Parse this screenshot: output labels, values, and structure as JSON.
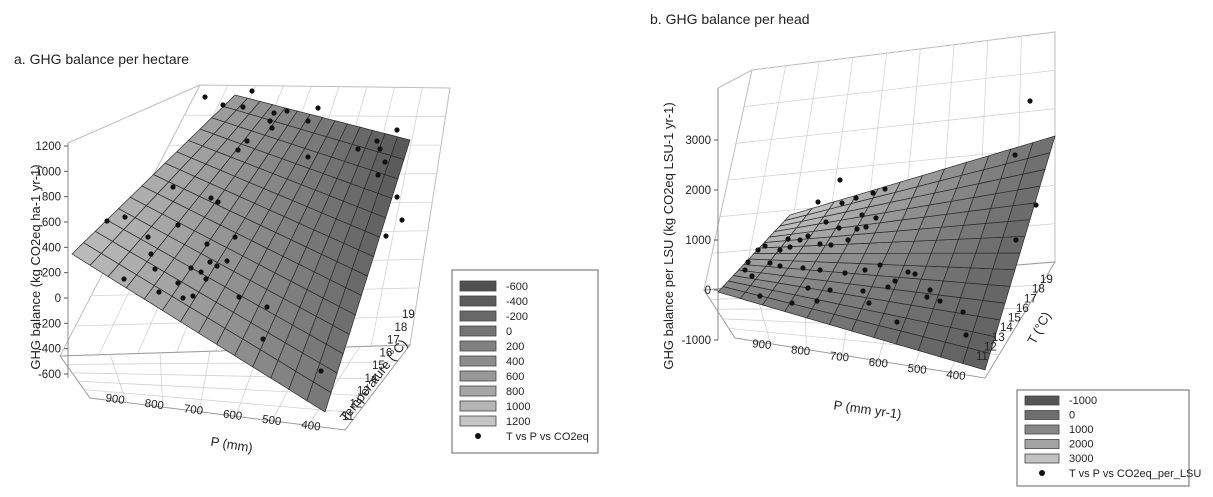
{
  "chart_data": [
    {
      "type": "surface3d",
      "title": "a. GHG balance per hectare",
      "zlabel": "GHG balance (kg CO2eq ha-1 yr-1)",
      "xlabel": "P (mm)",
      "ylabel": "Temperature (°C)",
      "z_ticks": [
        "1200",
        "1000",
        "800",
        "600",
        "400",
        "200",
        "0",
        "-200",
        "-400",
        "-600"
      ],
      "x_ticks": [
        "900",
        "800",
        "700",
        "600",
        "500",
        "400"
      ],
      "y_ticks": [
        "11",
        "12",
        "13",
        "14",
        "15",
        "16",
        "17",
        "18",
        "19"
      ],
      "legend": {
        "entries": [
          {
            "label": "-600",
            "color": "#505050"
          },
          {
            "label": "-400",
            "color": "#5c5c5c"
          },
          {
            "label": "-200",
            "color": "#686868"
          },
          {
            "label": "0",
            "color": "#747474"
          },
          {
            "label": "200",
            "color": "#808080"
          },
          {
            "label": "400",
            "color": "#8c8c8c"
          },
          {
            "label": "600",
            "color": "#989898"
          },
          {
            "label": "800",
            "color": "#a6a6a6"
          },
          {
            "label": "1000",
            "color": "#b4b4b4"
          },
          {
            "label": "1200",
            "color": "#c4c4c4"
          }
        ],
        "points_label": "T vs P vs CO2eq"
      }
    },
    {
      "type": "surface3d",
      "title": "b. GHG balance per head",
      "zlabel": "GHG balance per LSU (kg CO2eq LSU-1 yr-1)",
      "xlabel": "P (mm yr-1)",
      "ylabel": "T (°C)",
      "z_ticks": [
        "3000",
        "2000",
        "1000",
        "0",
        "-1000"
      ],
      "x_ticks": [
        "900",
        "800",
        "700",
        "600",
        "500",
        "400"
      ],
      "y_ticks": [
        "11",
        "12",
        "13",
        "14",
        "15",
        "16",
        "17",
        "18",
        "19"
      ],
      "legend": {
        "entries": [
          {
            "label": "-1000",
            "color": "#555555"
          },
          {
            "label": "0",
            "color": "#6e6e6e"
          },
          {
            "label": "1000",
            "color": "#888888"
          },
          {
            "label": "2000",
            "color": "#a4a4a4"
          },
          {
            "label": "3000",
            "color": "#c2c2c2"
          }
        ],
        "points_label": "T vs P vs CO2eq_per_LSU"
      }
    }
  ]
}
